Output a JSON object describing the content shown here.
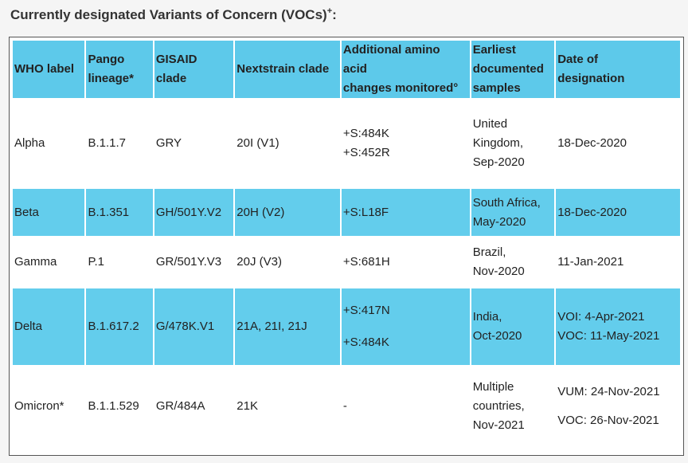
{
  "title": "Currently designated Variants of Concern (VOCs)",
  "title_superscript": "+",
  "title_suffix": ":",
  "headers": {
    "who_label": "WHO label",
    "pango_line1": "Pango",
    "pango_line2": "lineage*",
    "gisaid_line1": "GISAID",
    "gisaid_line2": "clade",
    "nextstrain": "Nextstrain clade",
    "amino_line1": "Additional amino",
    "amino_line2": "acid",
    "amino_line3": "changes monitored°",
    "earliest_line1": "Earliest",
    "earliest_line2": "documented",
    "earliest_line3": "samples",
    "date_line1": "Date of",
    "date_line2": "designation"
  },
  "rows": [
    {
      "who": "Alpha",
      "pango": "B.1.1.7",
      "gisaid": "GRY",
      "nextstrain": "20I (V1)",
      "amino": [
        "+S:484K",
        "+S:452R"
      ],
      "earliest": [
        "United",
        "Kingdom,",
        "Sep-2020"
      ],
      "date": [
        "18-Dec-2020"
      ]
    },
    {
      "who": "Beta",
      "pango": "B.1.351",
      "gisaid": "GH/501Y.V2",
      "nextstrain": "20H (V2)",
      "amino": [
        "+S:L18F"
      ],
      "earliest": [
        "South Africa,",
        "May-2020"
      ],
      "date": [
        "18-Dec-2020"
      ]
    },
    {
      "who": "Gamma",
      "pango": "P.1",
      "gisaid": "GR/501Y.V3",
      "nextstrain": "20J (V3)",
      "amino": [
        "+S:681H"
      ],
      "earliest": [
        "Brazil,",
        "Nov-2020"
      ],
      "date": [
        "11-Jan-2021"
      ]
    },
    {
      "who": "Delta",
      "pango": "B.1.617.2",
      "gisaid": "G/478K.V1",
      "nextstrain": "21A, 21I, 21J",
      "amino": [
        "+S:417N",
        "+S:484K"
      ],
      "earliest": [
        "India,",
        "Oct-2020"
      ],
      "date": [
        "VOI: 4-Apr-2021",
        "VOC: 11-May-2021"
      ]
    },
    {
      "who": "Omicron*",
      "pango": "B.1.1.529",
      "gisaid": "GR/484A",
      "nextstrain": "21K",
      "amino": [
        "-"
      ],
      "earliest": [
        "Multiple",
        "countries,",
        "Nov-2021"
      ],
      "date": [
        "VUM: 24-Nov-2021",
        "VOC: 26-Nov-2021"
      ]
    }
  ]
}
